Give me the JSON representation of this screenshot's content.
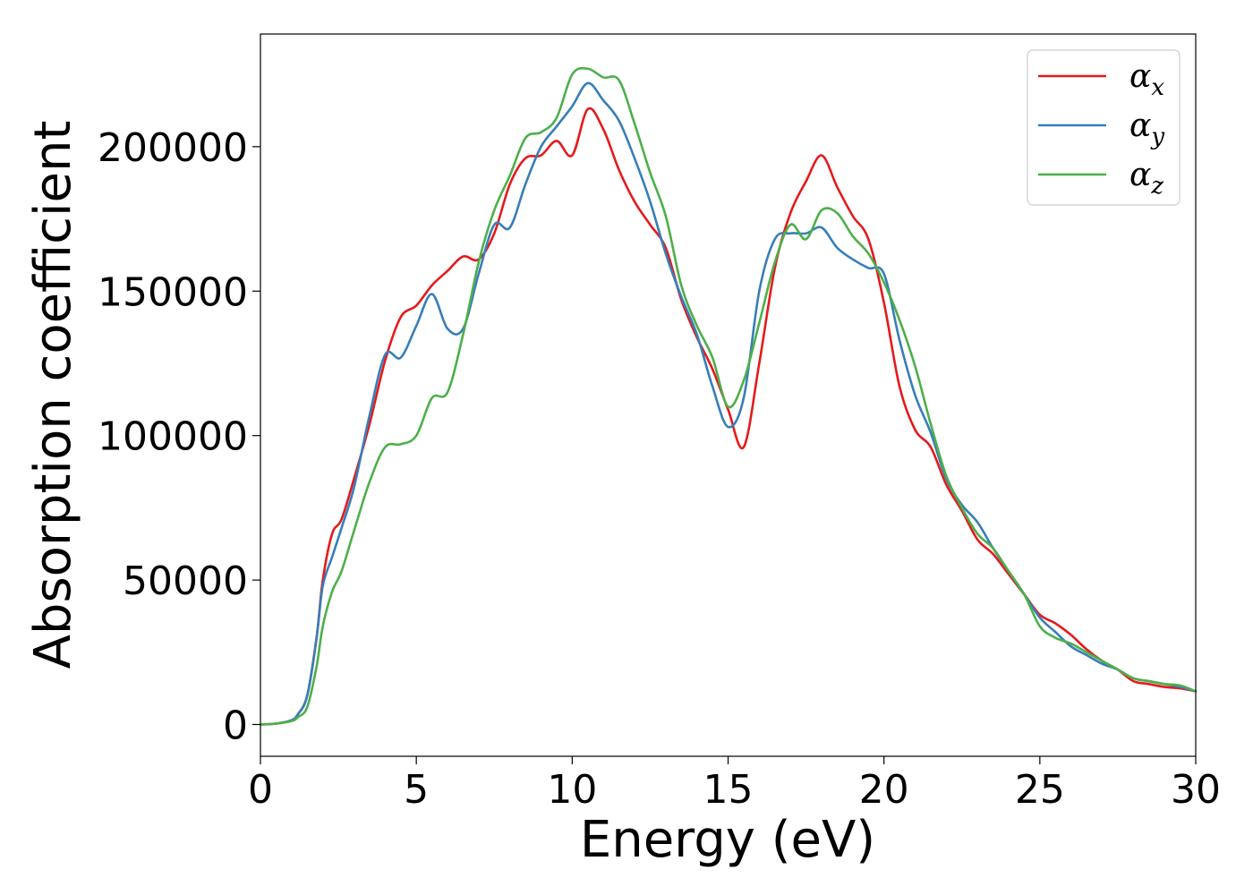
{
  "chart_data": {
    "type": "line",
    "title": "",
    "xlabel": "Energy (eV)",
    "ylabel": "Absorption coefficient",
    "xlim": [
      0,
      30
    ],
    "ylim": [
      -11000,
      239000
    ],
    "xticks": [
      0,
      5,
      10,
      15,
      20,
      25,
      30
    ],
    "yticks": [
      0,
      50000,
      100000,
      150000,
      200000
    ],
    "grid": false,
    "legend": {
      "position": "top-right"
    },
    "x": [
      0,
      0.5,
      1,
      1.2,
      1.5,
      1.8,
      2,
      2.3,
      2.6,
      3,
      3.5,
      4,
      4.5,
      5,
      5.5,
      6,
      6.5,
      7,
      7.5,
      8,
      8.5,
      9,
      9.5,
      10,
      10.5,
      11,
      11.5,
      12,
      12.5,
      13,
      13.5,
      14,
      14.5,
      15,
      15.5,
      16,
      16.5,
      17,
      17.5,
      18,
      18.5,
      19,
      19.5,
      20,
      20.5,
      21,
      21.5,
      22,
      22.5,
      23,
      23.5,
      24,
      24.5,
      25,
      25.5,
      26,
      26.5,
      27,
      27.5,
      28,
      28.5,
      29,
      29.5,
      30
    ],
    "series": [
      {
        "name": "α",
        "subscript": "x",
        "color": "#e41a1c",
        "values": [
          0,
          300,
          1500,
          3500,
          10000,
          30000,
          50000,
          66000,
          71000,
          85000,
          104000,
          126000,
          141000,
          145000,
          152000,
          157000,
          162000,
          161000,
          170000,
          187000,
          196000,
          197000,
          202000,
          197000,
          213000,
          206000,
          192000,
          181000,
          173000,
          165000,
          147000,
          134000,
          123000,
          109000,
          96000,
          125000,
          158000,
          177000,
          188000,
          197000,
          186000,
          176000,
          168000,
          146000,
          117000,
          102000,
          96000,
          83000,
          74000,
          64000,
          59000,
          52000,
          45000,
          38000,
          35000,
          31000,
          26000,
          22000,
          19000,
          15000,
          14000,
          13000,
          12500,
          11500
        ]
      },
      {
        "name": "α",
        "subscript": "y",
        "color": "#377eb8",
        "values": [
          0,
          300,
          1500,
          3500,
          10000,
          30000,
          48000,
          58000,
          68000,
          82000,
          107000,
          128000,
          127000,
          138000,
          149000,
          137000,
          137000,
          156000,
          173000,
          172000,
          187000,
          200000,
          207000,
          214000,
          222000,
          216000,
          209000,
          196000,
          181000,
          163000,
          148000,
          135000,
          117000,
          103000,
          113000,
          150000,
          168000,
          170000,
          170000,
          172000,
          165000,
          161000,
          158000,
          156000,
          133000,
          114000,
          101000,
          85000,
          76000,
          70000,
          61000,
          53000,
          45000,
          37000,
          32000,
          27000,
          24000,
          21000,
          19000,
          16000,
          15000,
          14000,
          13000,
          11500
        ]
      },
      {
        "name": "α",
        "subscript": "z",
        "color": "#4daf4a",
        "values": [
          0,
          300,
          1200,
          2500,
          6000,
          20000,
          34000,
          46000,
          53000,
          67000,
          84000,
          96000,
          97000,
          100000,
          113000,
          115000,
          135000,
          160000,
          178000,
          190000,
          203000,
          205000,
          210000,
          225000,
          227000,
          224000,
          223000,
          208000,
          191000,
          176000,
          152000,
          138000,
          127000,
          110000,
          119000,
          139000,
          160000,
          173000,
          168000,
          178000,
          177000,
          169000,
          163000,
          153000,
          140000,
          124000,
          104000,
          86000,
          75000,
          66000,
          61000,
          53000,
          45000,
          34000,
          30000,
          28000,
          25000,
          22000,
          19000,
          16000,
          15000,
          14000,
          13500,
          11500
        ]
      }
    ]
  }
}
